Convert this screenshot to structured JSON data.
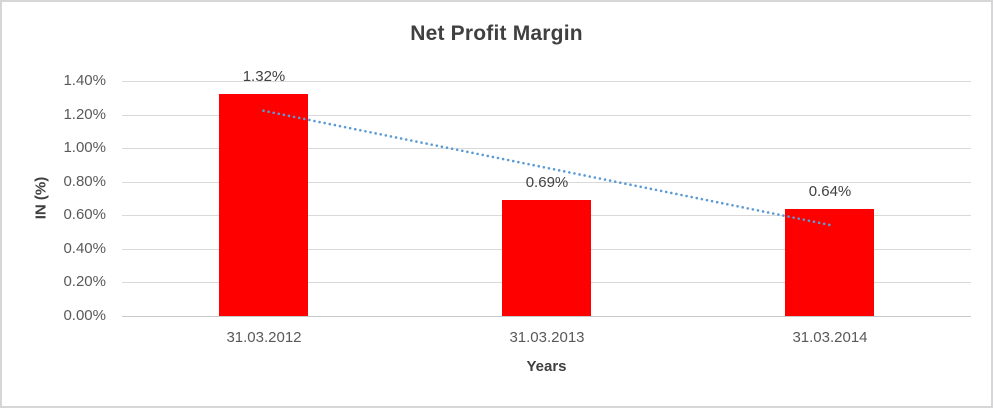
{
  "chart_data": {
    "type": "bar",
    "title": "Net Profit Margin",
    "xlabel": "Years",
    "ylabel": "IN (%)",
    "categories": [
      "31.03.2012",
      "31.03.2013",
      "31.03.2014"
    ],
    "values": [
      1.32,
      0.69,
      0.64
    ],
    "data_labels": [
      "1.32%",
      "0.69%",
      "0.64%"
    ],
    "y_ticks": [
      {
        "value": 0.0,
        "label": "0.00%"
      },
      {
        "value": 0.2,
        "label": "0.20%"
      },
      {
        "value": 0.4,
        "label": "0.40%"
      },
      {
        "value": 0.6,
        "label": "0.60%"
      },
      {
        "value": 0.8,
        "label": "0.80%"
      },
      {
        "value": 1.0,
        "label": "1.00%"
      },
      {
        "value": 1.2,
        "label": "1.20%"
      },
      {
        "value": 1.4,
        "label": "1.40%"
      }
    ],
    "ylim": [
      0,
      1.4
    ],
    "grid": true,
    "legend": false,
    "trendline": {
      "type": "linear",
      "style": "dotted",
      "start_value": 1.223,
      "end_value": 0.543
    },
    "colors": {
      "bar": "#FF0000",
      "trendline": "#5B9BD5",
      "gridline": "#D9D9D9",
      "axis_line": "#C9C9C9",
      "title_text": "#404040",
      "tick_text": "#595959"
    }
  }
}
